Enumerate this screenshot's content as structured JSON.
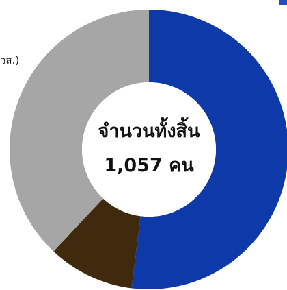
{
  "chart_data": {
    "type": "pie",
    "style": "donut",
    "legend_fragment": "วส.)",
    "center_title": "จำนวนทั้งสิ้น",
    "center_value": "1,057 คน",
    "categories": [
      "",
      "",
      ""
    ],
    "values": [
      52,
      10,
      38
    ],
    "colors": [
      "#0d3aa8",
      "#3f2a0d",
      "#a6a6a6"
    ]
  },
  "accent_colors": {
    "corner_mark": "#1f4fc0"
  }
}
